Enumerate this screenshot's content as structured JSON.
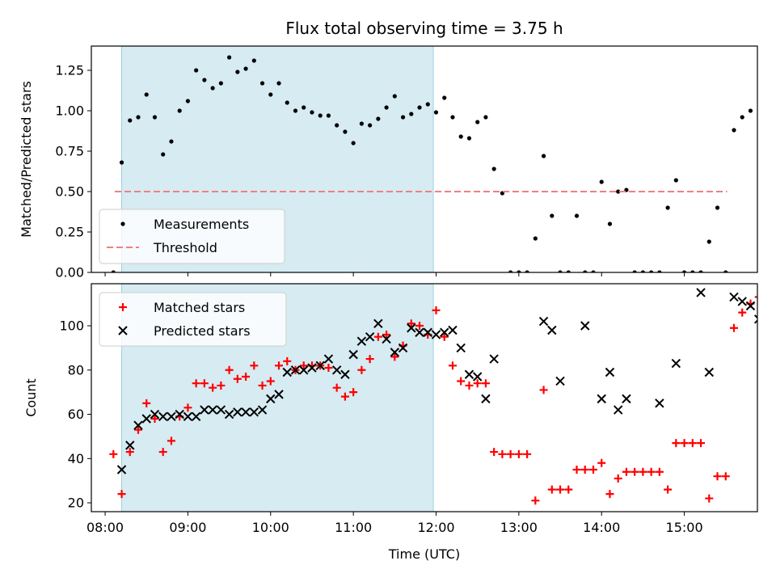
{
  "chart_data": {
    "type": "scatter",
    "title": "Flux total observing time = 3.75 h",
    "xlabel": "Time (UTC)",
    "x_range": [
      "07:50",
      "15:53"
    ],
    "x_ticks": [
      "08:00",
      "09:00",
      "10:00",
      "11:00",
      "12:00",
      "13:00",
      "14:00",
      "15:00"
    ],
    "shaded_interval": {
      "start": "08:12",
      "end": "11:58",
      "color": "#add8e6"
    },
    "panels": [
      {
        "name": "ratio",
        "ylabel": "Matched/Predicted stars",
        "ylim": [
          0,
          1.4
        ],
        "y_ticks": [
          0.0,
          0.25,
          0.5,
          0.75,
          1.0,
          1.25
        ],
        "y_tick_labels": [
          "0.00",
          "0.25",
          "0.50",
          "0.75",
          "1.00",
          "1.25"
        ],
        "legend_position": "lower-left",
        "series": [
          {
            "name": "Measurements",
            "marker": "dot",
            "color": "#000000",
            "points": [
              [
                "08:06",
                0.0
              ],
              [
                "08:12",
                0.68
              ],
              [
                "08:18",
                0.94
              ],
              [
                "08:24",
                0.96
              ],
              [
                "08:30",
                1.1
              ],
              [
                "08:36",
                0.96
              ],
              [
                "08:42",
                0.73
              ],
              [
                "08:48",
                0.81
              ],
              [
                "08:54",
                1.0
              ],
              [
                "09:00",
                1.06
              ],
              [
                "09:06",
                1.25
              ],
              [
                "09:12",
                1.19
              ],
              [
                "09:18",
                1.14
              ],
              [
                "09:24",
                1.17
              ],
              [
                "09:30",
                1.33
              ],
              [
                "09:36",
                1.24
              ],
              [
                "09:42",
                1.26
              ],
              [
                "09:48",
                1.31
              ],
              [
                "09:54",
                1.17
              ],
              [
                "10:00",
                1.1
              ],
              [
                "10:06",
                1.17
              ],
              [
                "10:12",
                1.05
              ],
              [
                "10:18",
                1.0
              ],
              [
                "10:24",
                1.02
              ],
              [
                "10:30",
                0.99
              ],
              [
                "10:36",
                0.97
              ],
              [
                "10:42",
                0.97
              ],
              [
                "10:48",
                0.91
              ],
              [
                "10:54",
                0.87
              ],
              [
                "11:00",
                0.8
              ],
              [
                "11:06",
                0.92
              ],
              [
                "11:12",
                0.91
              ],
              [
                "11:18",
                0.95
              ],
              [
                "11:24",
                1.02
              ],
              [
                "11:30",
                1.09
              ],
              [
                "11:36",
                0.96
              ],
              [
                "11:42",
                0.98
              ],
              [
                "11:48",
                1.02
              ],
              [
                "11:54",
                1.04
              ],
              [
                "12:00",
                0.99
              ],
              [
                "12:06",
                1.08
              ],
              [
                "12:12",
                0.96
              ],
              [
                "12:18",
                0.84
              ],
              [
                "12:24",
                0.83
              ],
              [
                "12:30",
                0.93
              ],
              [
                "12:36",
                0.96
              ],
              [
                "12:42",
                0.64
              ],
              [
                "12:48",
                0.49
              ],
              [
                "12:54",
                0.0
              ],
              [
                "13:00",
                0.0
              ],
              [
                "13:06",
                0.0
              ],
              [
                "13:12",
                0.21
              ],
              [
                "13:18",
                0.72
              ],
              [
                "13:24",
                0.35
              ],
              [
                "13:30",
                0.0
              ],
              [
                "13:36",
                0.0
              ],
              [
                "13:42",
                0.35
              ],
              [
                "13:48",
                0.0
              ],
              [
                "13:54",
                0.0
              ],
              [
                "14:00",
                0.56
              ],
              [
                "14:06",
                0.3
              ],
              [
                "14:12",
                0.5
              ],
              [
                "14:18",
                0.51
              ],
              [
                "14:24",
                0.0
              ],
              [
                "14:30",
                0.0
              ],
              [
                "14:36",
                0.0
              ],
              [
                "14:42",
                0.0
              ],
              [
                "14:48",
                0.4
              ],
              [
                "14:54",
                0.57
              ],
              [
                "15:00",
                0.0
              ],
              [
                "15:06",
                0.0
              ],
              [
                "15:12",
                0.0
              ],
              [
                "15:18",
                0.19
              ],
              [
                "15:24",
                0.4
              ],
              [
                "15:30",
                0.0
              ],
              [
                "15:36",
                0.88
              ],
              [
                "15:42",
                0.96
              ],
              [
                "15:48",
                1.0
              ]
            ]
          },
          {
            "name": "Threshold",
            "marker": "dashed-line",
            "color": "#f08080",
            "points": [
              [
                "08:07",
                0.5
              ],
              [
                "15:31",
                0.5
              ]
            ]
          }
        ]
      },
      {
        "name": "counts",
        "ylabel": "Count",
        "ylim": [
          16,
          119
        ],
        "y_ticks": [
          20,
          40,
          60,
          80,
          100
        ],
        "y_tick_labels": [
          "20",
          "40",
          "60",
          "80",
          "100"
        ],
        "legend_position": "upper-left",
        "series": [
          {
            "name": "Matched stars",
            "marker": "plus",
            "color": "#ff0000",
            "points": []
          },
          {
            "name": "Predicted stars",
            "marker": "x",
            "color": "#000000",
            "points": []
          }
        ]
      }
    ]
  }
}
